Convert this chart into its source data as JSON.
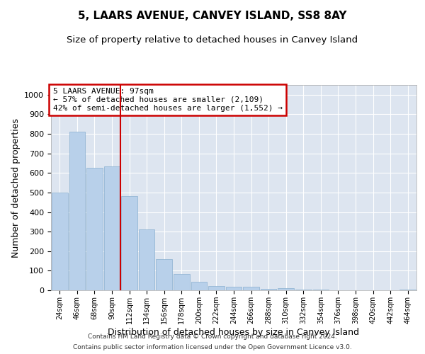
{
  "title": "5, LAARS AVENUE, CANVEY ISLAND, SS8 8AY",
  "subtitle": "Size of property relative to detached houses in Canvey Island",
  "xlabel": "Distribution of detached houses by size in Canvey Island",
  "ylabel": "Number of detached properties",
  "footer_line1": "Contains HM Land Registry data © Crown copyright and database right 2024.",
  "footer_line2": "Contains public sector information licensed under the Open Government Licence v3.0.",
  "annotation_title": "5 LAARS AVENUE: 97sqm",
  "annotation_line1": "← 57% of detached houses are smaller (2,109)",
  "annotation_line2": "42% of semi-detached houses are larger (1,552) →",
  "bar_labels": [
    "24sqm",
    "46sqm",
    "68sqm",
    "90sqm",
    "112sqm",
    "134sqm",
    "156sqm",
    "178sqm",
    "200sqm",
    "222sqm",
    "244sqm",
    "266sqm",
    "288sqm",
    "310sqm",
    "332sqm",
    "354sqm",
    "376sqm",
    "398sqm",
    "420sqm",
    "442sqm",
    "464sqm"
  ],
  "bar_values": [
    500,
    810,
    625,
    635,
    480,
    310,
    160,
    82,
    44,
    20,
    17,
    17,
    8,
    10,
    3,
    2,
    1,
    1,
    0,
    0,
    4
  ],
  "bar_color": "#b8d0ea",
  "bar_edge_color": "#8ab0d0",
  "vline_color": "#cc0000",
  "vline_x": 3.5,
  "ylim": [
    0,
    1050
  ],
  "yticks": [
    0,
    100,
    200,
    300,
    400,
    500,
    600,
    700,
    800,
    900,
    1000
  ],
  "background_color": "#dde5f0",
  "grid_color": "#ffffff",
  "fig_width": 6.0,
  "fig_height": 5.0,
  "dpi": 100
}
